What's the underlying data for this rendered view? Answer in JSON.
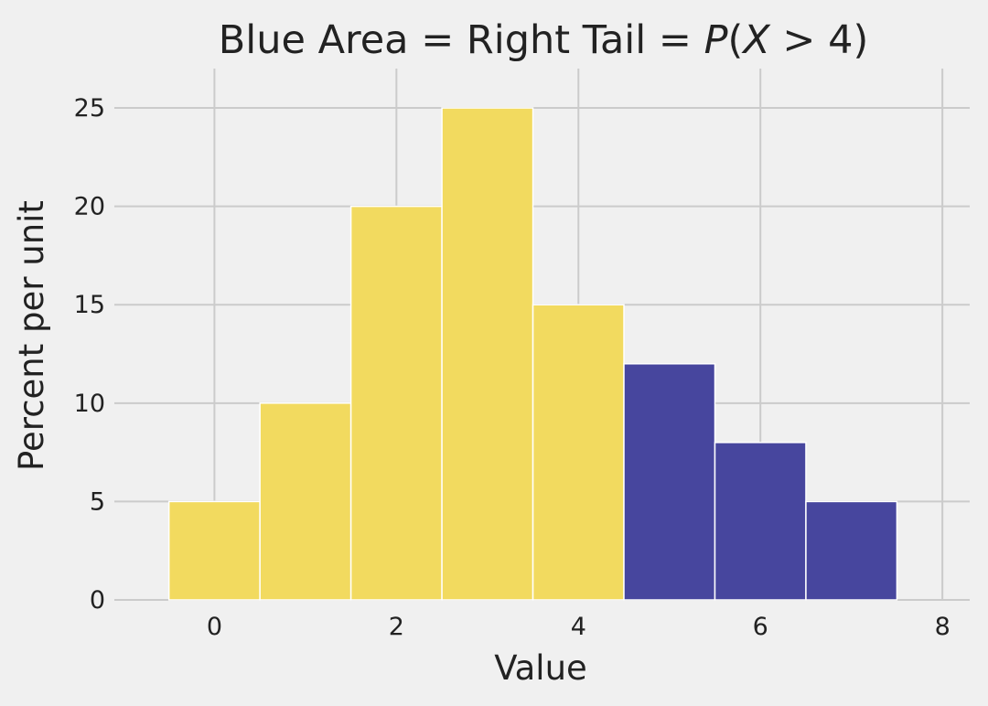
{
  "chart_data": {
    "type": "bar",
    "title": {
      "prefix": "Blue Area = Right Tail = ",
      "p_symbol": "P",
      "open_paren": "(",
      "x_symbol": "X",
      "operator": " > 4)"
    },
    "xlabel": "Value",
    "ylabel": "Percent per unit",
    "xlim": [
      -1.1,
      8.3
    ],
    "ylim": [
      0,
      27
    ],
    "x_ticks": [
      0,
      2,
      4,
      6,
      8
    ],
    "y_ticks": [
      0,
      5,
      10,
      15,
      20,
      25
    ],
    "grid": true,
    "bin_width": 1,
    "bins": [
      {
        "x": 0,
        "value": 5,
        "region": "left"
      },
      {
        "x": 1,
        "value": 10,
        "region": "left"
      },
      {
        "x": 2,
        "value": 20,
        "region": "left"
      },
      {
        "x": 3,
        "value": 25,
        "region": "left"
      },
      {
        "x": 4,
        "value": 15,
        "region": "left"
      },
      {
        "x": 5,
        "value": 12,
        "region": "tail"
      },
      {
        "x": 6,
        "value": 8,
        "region": "tail"
      },
      {
        "x": 7,
        "value": 5,
        "region": "tail"
      }
    ],
    "colors": {
      "left": "#f2da5f",
      "tail": "#47469e",
      "grid": "#cbcbcb",
      "background": "#f0f0f0",
      "edge": "#ffffff",
      "text": "#222222"
    }
  }
}
